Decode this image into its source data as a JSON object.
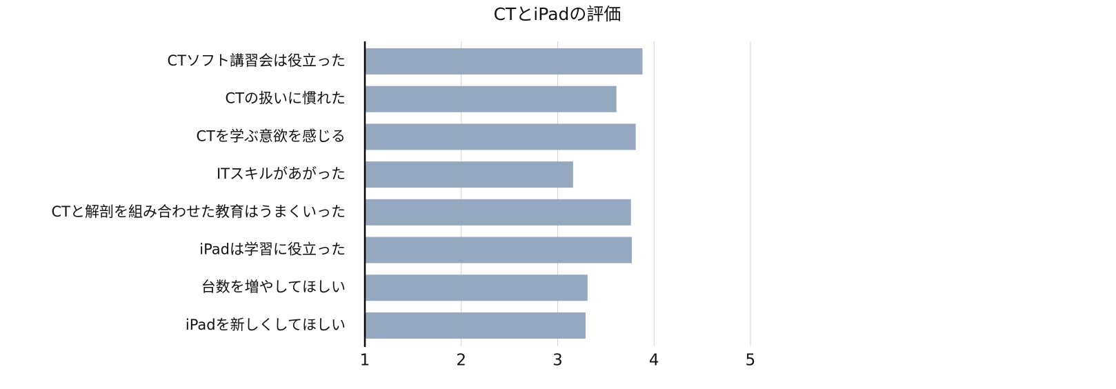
{
  "chart_data": {
    "type": "barh",
    "title": "CTとiPadの評価",
    "categories": [
      "CTソフト講習会は役立った",
      "CTの扱いに慣れた",
      "CTを学ぶ意欲を感じる",
      "ITスキルがあがった",
      "CTと解剖を組み合わせた教育はうまくいった",
      "iPadは学習に役立った",
      "台数を増やしてほしい",
      "iPadを新しくしてほしい"
    ],
    "values": [
      3.88,
      3.61,
      3.81,
      3.16,
      3.76,
      3.77,
      3.31,
      3.29
    ],
    "color": "#8fa3bc",
    "xlim": [
      1,
      5
    ],
    "xticks": [
      1,
      2,
      3,
      4,
      5
    ],
    "grid": true
  }
}
